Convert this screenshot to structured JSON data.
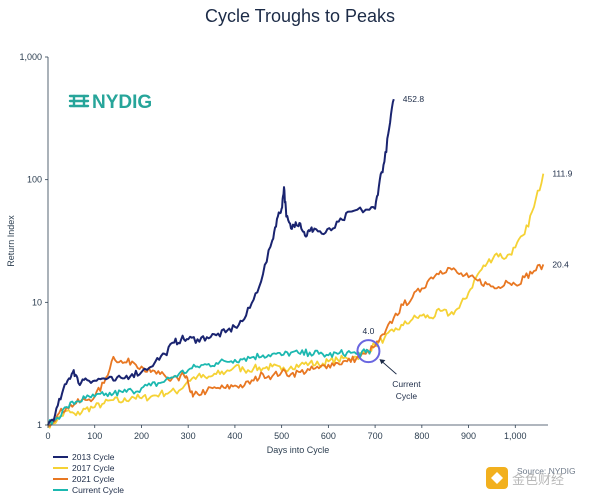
{
  "title": "Cycle Troughs to Peaks",
  "logo": {
    "text": "NYDIG",
    "color": "#27a59a"
  },
  "source_text": "Source: NYDIG",
  "watermark_text": "金色财经",
  "annotation": {
    "value_label": "4.0",
    "current_label_line1": "Current",
    "current_label_line2": "Cycle"
  },
  "colors": {
    "c2013": "#1a2470",
    "c2017": "#f5d235",
    "c2021": "#e87722",
    "current": "#1cb8b0",
    "circle": "#6a66e0"
  },
  "chart_data": {
    "type": "line",
    "title": "Cycle Troughs to Peaks",
    "xlabel": "Days into Cycle",
    "ylabel": "Return Index",
    "xlim": [
      0,
      1070
    ],
    "ylim": [
      1,
      1000
    ],
    "yscale": "log",
    "x_ticks": [
      "0",
      "100",
      "200",
      "300",
      "400",
      "500",
      "600",
      "700",
      "800",
      "900",
      "1,000"
    ],
    "y_ticks": [
      "1",
      "10",
      "100",
      "1,000"
    ],
    "legend_position": "bottom-left",
    "series": [
      {
        "name": "2013 Cycle",
        "end_label": "452.8",
        "points": [
          [
            0,
            1
          ],
          [
            15,
            1.2
          ],
          [
            30,
            1.8
          ],
          [
            45,
            2.4
          ],
          [
            55,
            2.8
          ],
          [
            65,
            2.2
          ],
          [
            80,
            2.4
          ],
          [
            100,
            2.3
          ],
          [
            120,
            2.4
          ],
          [
            140,
            2.3
          ],
          [
            160,
            2.4
          ],
          [
            180,
            2.6
          ],
          [
            200,
            2.7
          ],
          [
            230,
            3.3
          ],
          [
            250,
            3.8
          ],
          [
            270,
            4.7
          ],
          [
            285,
            5
          ],
          [
            300,
            5
          ],
          [
            320,
            5
          ],
          [
            340,
            5.2
          ],
          [
            360,
            5.4
          ],
          [
            380,
            5.7
          ],
          [
            400,
            6.3
          ],
          [
            420,
            7.3
          ],
          [
            440,
            10.5
          ],
          [
            460,
            17
          ],
          [
            480,
            32
          ],
          [
            490,
            48
          ],
          [
            500,
            58
          ],
          [
            505,
            87
          ],
          [
            510,
            50
          ],
          [
            520,
            40
          ],
          [
            530,
            45
          ],
          [
            540,
            44
          ],
          [
            550,
            35
          ],
          [
            560,
            38
          ],
          [
            570,
            40
          ],
          [
            590,
            36
          ],
          [
            610,
            40
          ],
          [
            630,
            47
          ],
          [
            650,
            55
          ],
          [
            680,
            57
          ],
          [
            700,
            58
          ],
          [
            710,
            100
          ],
          [
            720,
            140
          ],
          [
            730,
            260
          ],
          [
            740,
            452.8
          ]
        ]
      },
      {
        "name": "2017 Cycle",
        "end_label": "111.9",
        "points": [
          [
            0,
            1
          ],
          [
            20,
            1.1
          ],
          [
            40,
            1.3
          ],
          [
            60,
            1.2
          ],
          [
            80,
            1.35
          ],
          [
            100,
            1.4
          ],
          [
            120,
            1.5
          ],
          [
            140,
            1.6
          ],
          [
            160,
            1.55
          ],
          [
            180,
            1.7
          ],
          [
            200,
            1.65
          ],
          [
            220,
            1.7
          ],
          [
            240,
            1.8
          ],
          [
            260,
            1.85
          ],
          [
            280,
            1.9
          ],
          [
            300,
            2.3
          ],
          [
            320,
            2.5
          ],
          [
            340,
            2.4
          ],
          [
            360,
            2.6
          ],
          [
            380,
            2.7
          ],
          [
            400,
            3.0
          ],
          [
            420,
            2.8
          ],
          [
            440,
            2.9
          ],
          [
            460,
            2.9
          ],
          [
            480,
            3.0
          ],
          [
            500,
            2.8
          ],
          [
            520,
            3.0
          ],
          [
            540,
            3.1
          ],
          [
            560,
            3.2
          ],
          [
            580,
            3.1
          ],
          [
            600,
            3.3
          ],
          [
            620,
            3.4
          ],
          [
            640,
            3.5
          ],
          [
            660,
            3.6
          ],
          [
            680,
            3.9
          ],
          [
            700,
            4.5
          ],
          [
            720,
            5.1
          ],
          [
            740,
            5.8
          ],
          [
            760,
            6.5
          ],
          [
            780,
            7.3
          ],
          [
            800,
            7.8
          ],
          [
            820,
            7.5
          ],
          [
            840,
            8.5
          ],
          [
            860,
            8.0
          ],
          [
            880,
            9.0
          ],
          [
            900,
            12
          ],
          [
            920,
            17
          ],
          [
            940,
            21
          ],
          [
            960,
            25
          ],
          [
            980,
            23
          ],
          [
            1000,
            28
          ],
          [
            1020,
            36
          ],
          [
            1040,
            60
          ],
          [
            1060,
            111.9
          ]
        ]
      },
      {
        "name": "2021 Cycle",
        "end_label": "20.4",
        "points": [
          [
            0,
            1
          ],
          [
            20,
            1.2
          ],
          [
            40,
            1.4
          ],
          [
            60,
            1.5
          ],
          [
            80,
            1.6
          ],
          [
            100,
            1.7
          ],
          [
            120,
            2.2
          ],
          [
            140,
            3.6
          ],
          [
            160,
            3.2
          ],
          [
            180,
            3.3
          ],
          [
            200,
            3.0
          ],
          [
            220,
            2.7
          ],
          [
            240,
            2.6
          ],
          [
            260,
            2.3
          ],
          [
            270,
            2.5
          ],
          [
            280,
            2.3
          ],
          [
            290,
            2.6
          ],
          [
            300,
            2.2
          ],
          [
            310,
            1.7
          ],
          [
            320,
            1.8
          ],
          [
            340,
            1.9
          ],
          [
            360,
            2.0
          ],
          [
            380,
            2.0
          ],
          [
            400,
            2.1
          ],
          [
            420,
            2.1
          ],
          [
            440,
            2.3
          ],
          [
            460,
            2.6
          ],
          [
            480,
            2.5
          ],
          [
            500,
            2.7
          ],
          [
            520,
            2.6
          ],
          [
            540,
            2.7
          ],
          [
            560,
            2.8
          ],
          [
            580,
            2.9
          ],
          [
            600,
            3.1
          ],
          [
            620,
            3.2
          ],
          [
            640,
            3.3
          ],
          [
            660,
            3.5
          ],
          [
            680,
            3.8
          ],
          [
            700,
            4.4
          ],
          [
            720,
            5.5
          ],
          [
            740,
            7.5
          ],
          [
            760,
            9.5
          ],
          [
            780,
            11
          ],
          [
            800,
            13
          ],
          [
            820,
            16
          ],
          [
            840,
            18
          ],
          [
            860,
            19
          ],
          [
            880,
            17
          ],
          [
            900,
            16
          ],
          [
            920,
            15
          ],
          [
            940,
            14
          ],
          [
            960,
            13
          ],
          [
            980,
            15
          ],
          [
            1000,
            14
          ],
          [
            1020,
            16
          ],
          [
            1040,
            18
          ],
          [
            1060,
            20.4
          ]
        ]
      },
      {
        "name": "Current Cycle",
        "end_label": "4.0",
        "points": [
          [
            0,
            1
          ],
          [
            20,
            1.15
          ],
          [
            40,
            1.4
          ],
          [
            60,
            1.55
          ],
          [
            80,
            1.65
          ],
          [
            100,
            1.7
          ],
          [
            120,
            1.75
          ],
          [
            140,
            1.8
          ],
          [
            160,
            1.85
          ],
          [
            180,
            1.9
          ],
          [
            200,
            2.0
          ],
          [
            220,
            2.1
          ],
          [
            240,
            2.2
          ],
          [
            260,
            2.4
          ],
          [
            280,
            2.6
          ],
          [
            300,
            2.8
          ],
          [
            320,
            3.0
          ],
          [
            340,
            3.1
          ],
          [
            360,
            3.2
          ],
          [
            380,
            3.3
          ],
          [
            400,
            3.4
          ],
          [
            420,
            3.5
          ],
          [
            440,
            3.6
          ],
          [
            460,
            3.7
          ],
          [
            480,
            3.8
          ],
          [
            500,
            3.7
          ],
          [
            520,
            3.9
          ],
          [
            540,
            3.8
          ],
          [
            560,
            3.9
          ],
          [
            580,
            3.8
          ],
          [
            600,
            3.7
          ],
          [
            620,
            3.8
          ],
          [
            640,
            3.9
          ],
          [
            660,
            3.8
          ],
          [
            680,
            3.9
          ],
          [
            690,
            4.0
          ]
        ]
      }
    ]
  }
}
